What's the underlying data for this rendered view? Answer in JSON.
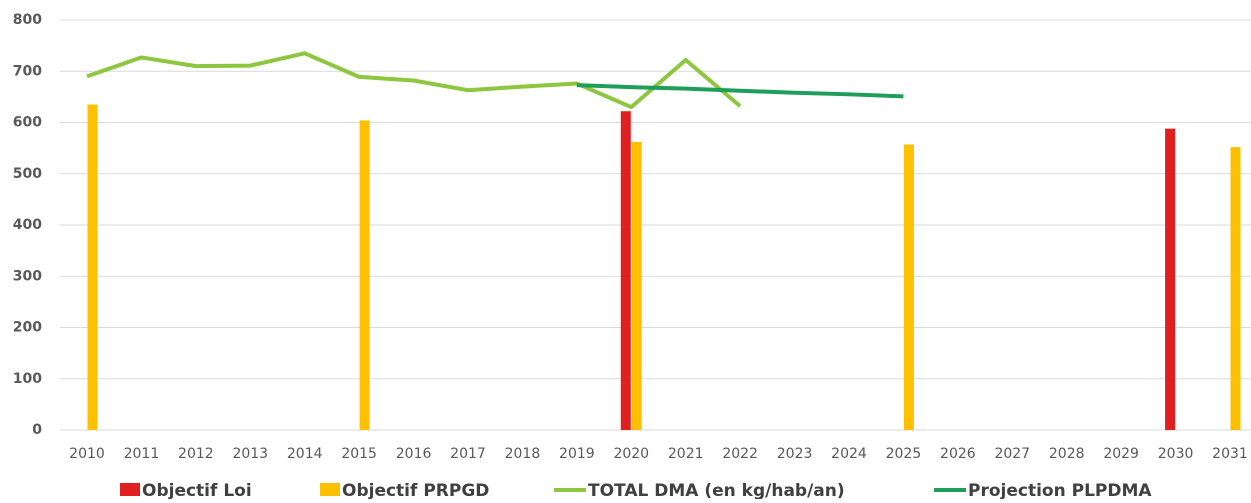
{
  "chart_data": {
    "type": "combo",
    "categories": [
      "2010",
      "2011",
      "2012",
      "2013",
      "2014",
      "2015",
      "2016",
      "2017",
      "2018",
      "2019",
      "2020",
      "2021",
      "2022",
      "2023",
      "2024",
      "2025",
      "2026",
      "2027",
      "2028",
      "2029",
      "2030",
      "2031"
    ],
    "series": [
      {
        "name": "Objectif Loi",
        "type": "bar",
        "color": "#e02020",
        "values": [
          null,
          null,
          null,
          null,
          null,
          null,
          null,
          null,
          null,
          null,
          622,
          null,
          null,
          null,
          null,
          null,
          null,
          null,
          null,
          null,
          588,
          null
        ]
      },
      {
        "name": "Objectif PRPGD",
        "type": "bar",
        "color": "#ffc000",
        "values": [
          635,
          null,
          null,
          null,
          null,
          604,
          null,
          null,
          null,
          null,
          562,
          null,
          null,
          null,
          null,
          557,
          null,
          null,
          null,
          null,
          null,
          552
        ]
      },
      {
        "name": "TOTAL DMA (en kg/hab/an)",
        "type": "line",
        "color": "#8dc63f",
        "values": [
          690,
          727,
          710,
          711,
          735,
          689,
          682,
          663,
          670,
          676,
          630,
          722,
          632,
          null,
          null,
          null,
          null,
          null,
          null,
          null,
          null,
          null
        ]
      },
      {
        "name": "Projection PLPDMA",
        "type": "line",
        "color": "#1e9e5a",
        "values": [
          null,
          null,
          null,
          null,
          null,
          null,
          null,
          null,
          null,
          673,
          669,
          666,
          662,
          658,
          655,
          651,
          null,
          null,
          null,
          null,
          null,
          null
        ]
      }
    ],
    "ylim": [
      0,
      800
    ],
    "yticks": [
      0,
      100,
      200,
      300,
      400,
      500,
      600,
      700,
      800
    ],
    "grid": true,
    "legend": "bottom"
  }
}
